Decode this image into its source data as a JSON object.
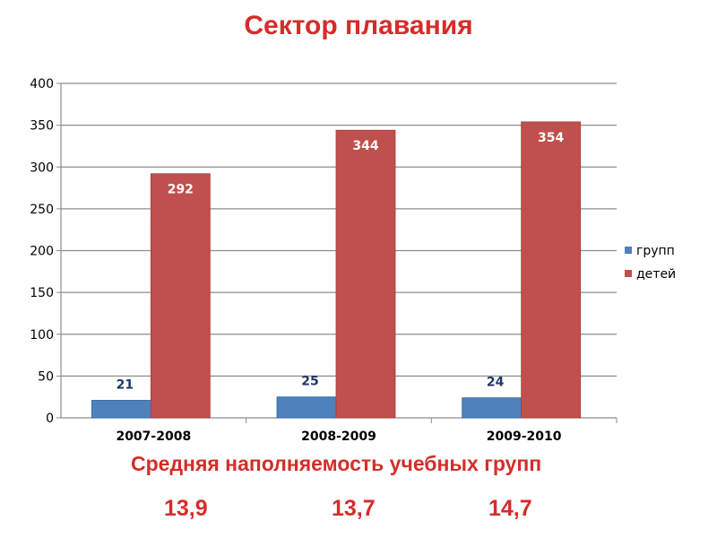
{
  "title": "Сектор плавания",
  "subtitle": "Средняя наполняемость учебных групп",
  "averages": [
    "13,9",
    "13,7",
    "14,7"
  ],
  "colors": {
    "title": "#d42d2a",
    "groups": "#4f81bd",
    "children": "#c0504d",
    "grid": "#8c8c8c"
  },
  "chart_data": {
    "type": "bar",
    "categories": [
      "2007-2008",
      "2008-2009",
      "2009-2010"
    ],
    "series": [
      {
        "name": "групп",
        "values": [
          21,
          25,
          24
        ]
      },
      {
        "name": "детей",
        "values": [
          292,
          344,
          354
        ]
      }
    ],
    "ylim": [
      0,
      400
    ],
    "yticks": [
      0,
      50,
      100,
      150,
      200,
      250,
      300,
      350,
      400
    ],
    "grid": true,
    "legend": "right"
  }
}
